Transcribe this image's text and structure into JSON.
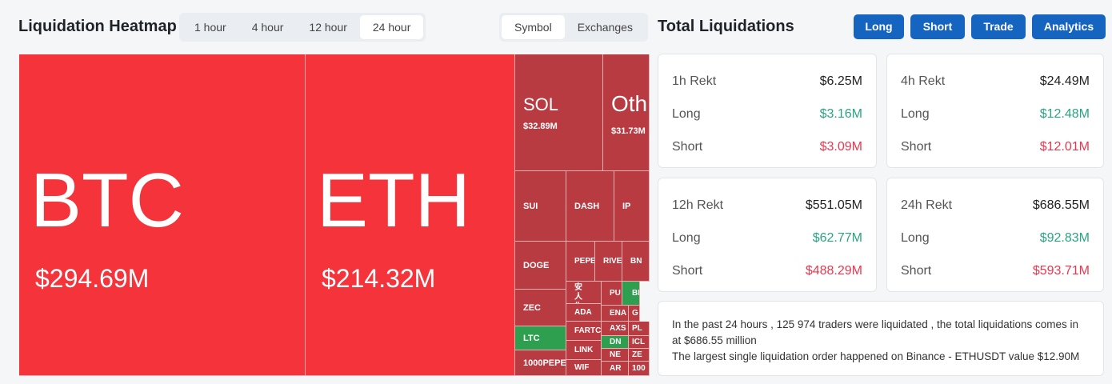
{
  "header": {
    "title": "Liquidation Heatmap",
    "time_tabs": [
      "1 hour",
      "4 hour",
      "12 hour",
      "24 hour"
    ],
    "view_tabs": [
      "Symbol",
      "Exchanges"
    ]
  },
  "stats_header": {
    "title": "Total Liquidations",
    "buttons": [
      "Long",
      "Short",
      "Trade",
      "Analytics"
    ]
  },
  "heatmap": {
    "tiles": [
      {
        "symbol": "BTC",
        "value": "$294.69M"
      },
      {
        "symbol": "ETH",
        "value": "$214.32M"
      },
      {
        "symbol": "SOL",
        "value": "$32.89M"
      },
      {
        "symbol": "Oth",
        "value": "$31.73M"
      },
      {
        "symbol": "SUI"
      },
      {
        "symbol": "DASH"
      },
      {
        "symbol": "IP"
      },
      {
        "symbol": "DOGE"
      },
      {
        "symbol": "PEPE"
      },
      {
        "symbol": "RIVE"
      },
      {
        "symbol": "BN"
      },
      {
        "symbol": "ZEC"
      },
      {
        "symbol": "LTC"
      },
      {
        "symbol": "1000PEPE"
      },
      {
        "symbol": "币安人生"
      },
      {
        "symbol": "ADA"
      },
      {
        "symbol": "FARTC"
      },
      {
        "symbol": "LINK"
      },
      {
        "symbol": "WIF"
      },
      {
        "symbol": "PU"
      },
      {
        "symbol": "BI"
      },
      {
        "symbol": "ENA"
      },
      {
        "symbol": "G"
      },
      {
        "symbol": "AXS"
      },
      {
        "symbol": "PL"
      },
      {
        "symbol": "DN"
      },
      {
        "symbol": "ICL"
      },
      {
        "symbol": "NE"
      },
      {
        "symbol": "ZE"
      },
      {
        "symbol": "AR"
      },
      {
        "symbol": "100"
      }
    ]
  },
  "stats": {
    "cards": [
      {
        "title": "1h Rekt",
        "total": "$6.25M",
        "long_label": "Long",
        "long": "$3.16M",
        "short_label": "Short",
        "short": "$3.09M"
      },
      {
        "title": "4h Rekt",
        "total": "$24.49M",
        "long_label": "Long",
        "long": "$12.48M",
        "short_label": "Short",
        "short": "$12.01M"
      },
      {
        "title": "12h Rekt",
        "total": "$551.05M",
        "long_label": "Long",
        "long": "$62.77M",
        "short_label": "Short",
        "short": "$488.29M"
      },
      {
        "title": "24h Rekt",
        "total": "$686.55M",
        "long_label": "Long",
        "long": "$92.83M",
        "short_label": "Short",
        "short": "$593.71M"
      }
    ],
    "note": [
      "In the past 24 hours , 125 974 traders were liquidated , the total liquidations comes in at $686.55 million",
      "The largest single liquidation order happened on Binance - ETHUSDT value $12.90M"
    ]
  }
}
